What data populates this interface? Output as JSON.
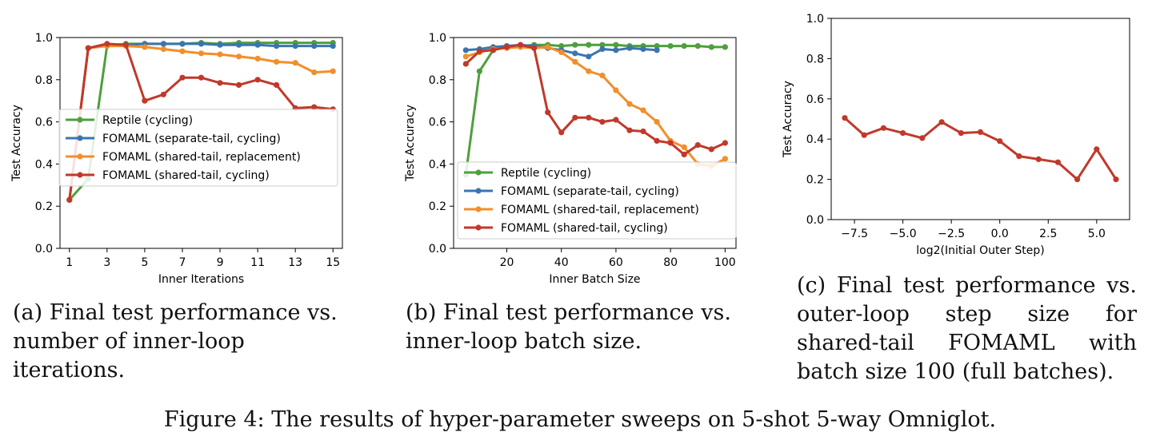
{
  "colors": {
    "reptile": "#4e9f3d",
    "separate_cycling": "#3a75b0",
    "shared_replacement": "#f28e2b",
    "shared_cycling": "#c0392b"
  },
  "chart_data": [
    {
      "id": "a",
      "type": "line",
      "xlabel": "Inner Iterations",
      "ylabel": "Test Accuracy",
      "xlim": [
        0.5,
        15.5
      ],
      "ylim": [
        0.0,
        1.0
      ],
      "xticks": [
        1,
        3,
        5,
        7,
        9,
        11,
        13,
        15
      ],
      "xtick_labels": [
        "1",
        "3",
        "5",
        "7",
        "9",
        "11",
        "13",
        "15"
      ],
      "yticks": [
        0.0,
        0.2,
        0.4,
        0.6,
        0.8,
        1.0
      ],
      "ytick_labels": [
        "0.0",
        "0.2",
        "0.4",
        "0.6",
        "0.8",
        "1.0"
      ],
      "legend_position": "center-left",
      "series": [
        {
          "name": "Reptile (cycling)",
          "color_key": "reptile",
          "x": [
            1,
            2,
            3,
            4,
            5,
            6,
            7,
            8,
            9,
            10,
            11,
            12,
            13,
            14,
            15
          ],
          "y": [
            0.23,
            0.33,
            0.96,
            0.97,
            0.97,
            0.97,
            0.97,
            0.975,
            0.97,
            0.975,
            0.975,
            0.975,
            0.975,
            0.975,
            0.975
          ]
        },
        {
          "name": "FOMAML (separate-tail, cycling)",
          "color_key": "separate_cycling",
          "x": [
            1,
            2,
            3,
            4,
            5,
            6,
            7,
            8,
            9,
            10,
            11,
            12,
            13,
            14,
            15
          ],
          "y": [
            0.23,
            0.95,
            0.965,
            0.965,
            0.97,
            0.97,
            0.97,
            0.97,
            0.965,
            0.965,
            0.965,
            0.96,
            0.96,
            0.96,
            0.96
          ]
        },
        {
          "name": "FOMAML (shared-tail, replacement)",
          "color_key": "shared_replacement",
          "x": [
            1,
            2,
            3,
            4,
            5,
            6,
            7,
            8,
            9,
            10,
            11,
            12,
            13,
            14,
            15
          ],
          "y": [
            0.23,
            0.95,
            0.96,
            0.96,
            0.955,
            0.945,
            0.935,
            0.925,
            0.92,
            0.91,
            0.9,
            0.885,
            0.88,
            0.835,
            0.84
          ]
        },
        {
          "name": "FOMAML (shared-tail, cycling)",
          "color_key": "shared_cycling",
          "x": [
            1,
            2,
            3,
            4,
            5,
            6,
            7,
            8,
            9,
            10,
            11,
            12,
            13,
            14,
            15
          ],
          "y": [
            0.23,
            0.95,
            0.97,
            0.965,
            0.7,
            0.73,
            0.81,
            0.81,
            0.785,
            0.775,
            0.8,
            0.775,
            0.665,
            0.67,
            0.66
          ]
        }
      ]
    },
    {
      "id": "b",
      "type": "line",
      "xlabel": "Inner Batch Size",
      "ylabel": "Test Accuracy",
      "xlim": [
        0.5,
        104
      ],
      "ylim": [
        0.0,
        1.0
      ],
      "xticks": [
        20,
        40,
        60,
        80,
        100
      ],
      "xtick_labels": [
        "20",
        "40",
        "60",
        "80",
        "100"
      ],
      "yticks": [
        0.0,
        0.2,
        0.4,
        0.6,
        0.8,
        1.0
      ],
      "ytick_labels": [
        "0.0",
        "0.2",
        "0.4",
        "0.6",
        "0.8",
        "1.0"
      ],
      "legend_position": "lower-left",
      "series": [
        {
          "name": "Reptile (cycling)",
          "color_key": "reptile",
          "x": [
            5,
            10,
            15,
            20,
            25,
            30,
            35,
            40,
            45,
            50,
            55,
            60,
            65,
            70,
            75,
            80,
            85,
            90,
            95,
            100
          ],
          "y": [
            0.35,
            0.84,
            0.94,
            0.96,
            0.96,
            0.965,
            0.965,
            0.96,
            0.965,
            0.965,
            0.965,
            0.965,
            0.96,
            0.96,
            0.96,
            0.96,
            0.96,
            0.96,
            0.955,
            0.955
          ]
        },
        {
          "name": "FOMAML (separate-tail, cycling)",
          "color_key": "separate_cycling",
          "x": [
            5,
            10,
            15,
            20,
            25,
            30,
            35,
            40,
            45,
            50,
            55,
            60,
            65,
            70,
            75
          ],
          "y": [
            0.94,
            0.945,
            0.955,
            0.96,
            0.965,
            0.96,
            0.95,
            0.94,
            0.925,
            0.91,
            0.945,
            0.94,
            0.95,
            0.945,
            0.94
          ]
        },
        {
          "name": "FOMAML (shared-tail, replacement)",
          "color_key": "shared_replacement",
          "x": [
            5,
            10,
            15,
            20,
            25,
            30,
            35,
            40,
            45,
            50,
            55,
            60,
            65,
            70,
            75,
            80,
            85,
            90,
            95,
            100
          ],
          "y": [
            0.91,
            0.93,
            0.945,
            0.95,
            0.955,
            0.95,
            0.955,
            0.93,
            0.885,
            0.84,
            0.82,
            0.75,
            0.685,
            0.655,
            0.6,
            0.51,
            0.48,
            0.4,
            0.39,
            0.425
          ]
        },
        {
          "name": "FOMAML (shared-tail, cycling)",
          "color_key": "shared_cycling",
          "x": [
            5,
            10,
            15,
            20,
            25,
            30,
            35,
            40,
            45,
            50,
            55,
            60,
            65,
            70,
            75,
            80,
            85,
            90,
            95,
            100
          ],
          "y": [
            0.875,
            0.935,
            0.94,
            0.955,
            0.965,
            0.95,
            0.645,
            0.55,
            0.62,
            0.62,
            0.6,
            0.61,
            0.56,
            0.555,
            0.51,
            0.5,
            0.445,
            0.49,
            0.47,
            0.5
          ]
        }
      ]
    },
    {
      "id": "c",
      "type": "line",
      "xlabel": "log2(Initial Outer Step)",
      "ylabel": "Test Accuracy",
      "xlim": [
        -8.7,
        6.7
      ],
      "ylim": [
        0.0,
        1.0
      ],
      "xticks": [
        -7.5,
        -5.0,
        -2.5,
        0.0,
        2.5,
        5.0
      ],
      "xtick_labels": [
        "−7.5",
        "−5.0",
        "−2.5",
        "0.0",
        "2.5",
        "5.0"
      ],
      "yticks": [
        0.0,
        0.2,
        0.4,
        0.6,
        0.8,
        1.0
      ],
      "ytick_labels": [
        "0.0",
        "0.2",
        "0.4",
        "0.6",
        "0.8",
        "1.0"
      ],
      "series": [
        {
          "name": "",
          "color_key": "shared_cycling",
          "x": [
            -8,
            -7,
            -6,
            -5,
            -4,
            -3,
            -2,
            -1,
            0,
            1,
            2,
            3,
            4,
            5,
            6
          ],
          "y": [
            0.505,
            0.42,
            0.455,
            0.43,
            0.405,
            0.485,
            0.43,
            0.435,
            0.39,
            0.315,
            0.3,
            0.285,
            0.2,
            0.35,
            0.2
          ]
        }
      ]
    }
  ],
  "captions": {
    "a": "(a) Final test performance vs. number of inner-loop iterations.",
    "b": "(b) Final test performance vs. inner-loop batch size.",
    "c": "(c) Final test performance vs. outer-loop step size for shared-tail FOMAML with batch size 100 (full batches).",
    "figure": "Figure 4: The results of hyper-parameter sweeps on 5-shot 5-way Omniglot."
  }
}
